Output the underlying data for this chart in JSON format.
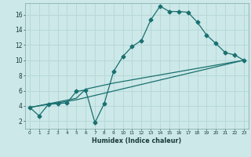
{
  "xlabel": "Humidex (Indice chaleur)",
  "bg_color": "#cce8e8",
  "grid_color": "#b8d8d8",
  "line_color": "#1a7070",
  "line1_x": [
    0,
    1,
    2,
    3,
    4,
    5,
    6,
    7,
    8,
    9,
    10,
    11,
    12,
    13,
    14,
    15,
    16,
    17,
    18,
    19,
    20,
    21,
    22,
    23
  ],
  "line1_y": [
    3.8,
    2.7,
    4.2,
    4.3,
    4.4,
    5.9,
    6.1,
    1.8,
    4.3,
    8.5,
    10.5,
    11.8,
    12.6,
    15.3,
    17.1,
    16.4,
    16.4,
    16.3,
    15.0,
    13.3,
    12.2,
    11.0,
    10.7,
    10.0
  ],
  "line2_x": [
    0,
    5,
    6,
    9,
    23
  ],
  "line2_y": [
    3.8,
    5.0,
    6.2,
    7.0,
    10.0
  ],
  "line3_x": [
    0,
    5,
    23
  ],
  "line3_y": [
    3.8,
    4.8,
    10.0
  ],
  "xlim": [
    -0.5,
    23.5
  ],
  "ylim": [
    1,
    17.5
  ],
  "xticks": [
    0,
    1,
    2,
    3,
    4,
    5,
    6,
    7,
    8,
    9,
    10,
    11,
    12,
    13,
    14,
    15,
    16,
    17,
    18,
    19,
    20,
    21,
    22,
    23
  ],
  "yticks": [
    2,
    4,
    6,
    8,
    10,
    12,
    14,
    16
  ]
}
